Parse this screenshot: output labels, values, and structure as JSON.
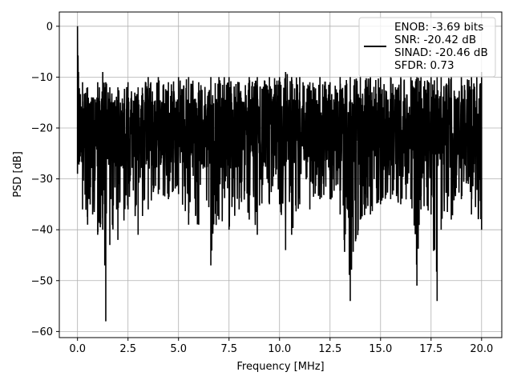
{
  "chart_data": {
    "type": "line",
    "xlabel": "Frequency [MHz]",
    "ylabel": "PSD [dB]",
    "xlim": [
      -0.9,
      21.0
    ],
    "ylim": [
      -61.2,
      2.8
    ],
    "xticks": [
      0.0,
      2.5,
      5.0,
      7.5,
      10.0,
      12.5,
      15.0,
      17.5,
      20.0
    ],
    "xtick_labels": [
      "0.0",
      "2.5",
      "5.0",
      "7.5",
      "10.0",
      "12.5",
      "15.0",
      "17.5",
      "20.0"
    ],
    "yticks": [
      0,
      -10,
      -20,
      -30,
      -40,
      -50,
      -60
    ],
    "ytick_labels": [
      "0",
      "−10",
      "−20",
      "−30",
      "−40",
      "−50",
      "−60"
    ],
    "grid": true,
    "legend_position": "top-right",
    "series_color": "#000000",
    "legend": [
      "ENOB: -3.69 bits",
      "SNR: -20.42 dB",
      "SINAD: -20.46 dB",
      "SFDR: 0.73"
    ],
    "series": [
      {
        "x": [
          0.0,
          0.05,
          0.25,
          0.5,
          0.75,
          1.0,
          1.25,
          1.35,
          1.4,
          1.6,
          2.0,
          2.5,
          3.0,
          3.5,
          4.0,
          4.5,
          5.0,
          5.5,
          6.0,
          6.6,
          7.0,
          7.5,
          8.0,
          8.5,
          8.9,
          9.5,
          10.0,
          10.3,
          10.6,
          11.0,
          11.5,
          12.0,
          12.5,
          13.0,
          13.5,
          14.0,
          14.5,
          15.0,
          15.5,
          16.0,
          16.5,
          16.8,
          17.0,
          17.5,
          17.8,
          18.0,
          18.5,
          19.0,
          19.5,
          20.0
        ],
        "min": [
          -29,
          -27,
          -36,
          -39,
          -37,
          -41,
          -40,
          -47,
          -58,
          -43,
          -42,
          -36,
          -41,
          -36,
          -33,
          -34,
          -33,
          -39,
          -39,
          -47,
          -38,
          -40,
          -36,
          -38,
          -41,
          -35,
          -35,
          -44,
          -41,
          -35,
          -36,
          -34,
          -34,
          -37,
          -54,
          -38,
          -37,
          -35,
          -34,
          -35,
          -34,
          -51,
          -36,
          -37,
          -54,
          -40,
          -38,
          -34,
          -37,
          -40
        ],
        "max": [
          0,
          -9,
          -11,
          -12,
          -14,
          -11,
          -9,
          -12,
          -11,
          -12,
          -12,
          -11,
          -12,
          -10,
          -10,
          -11,
          -10,
          -10,
          -11,
          -10,
          -10,
          -10,
          -11,
          -10,
          -10,
          -10,
          -10,
          -9,
          -10,
          -10,
          -11,
          -10,
          -11,
          -10,
          -10,
          -10,
          -10,
          -10,
          -10,
          -10,
          -10,
          -10,
          -10,
          -10,
          -10,
          -10,
          -10,
          -10,
          -10,
          -9
        ]
      }
    ]
  }
}
